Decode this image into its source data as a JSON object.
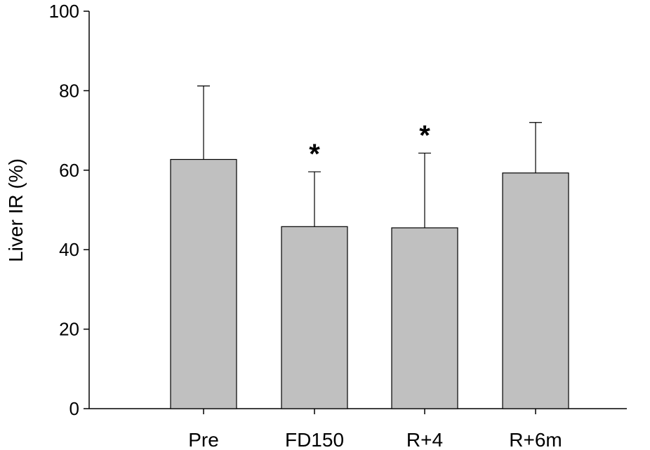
{
  "chart_data": {
    "type": "bar",
    "categories": [
      "Pre",
      "FD150",
      "R+4",
      "R+6m"
    ],
    "values": [
      62.7,
      45.8,
      45.5,
      59.3
    ],
    "error_upper": [
      81.2,
      59.6,
      64.3,
      72.0
    ],
    "annotations": [
      "",
      "*",
      "*",
      ""
    ],
    "title": "",
    "xlabel": "",
    "ylabel": "Liver IR (%)",
    "ylim": [
      0,
      100
    ],
    "yticks": [
      0,
      20,
      40,
      60,
      80,
      100
    ],
    "grid": false,
    "bar_color": "#c0c0c0",
    "bar_edge_color": "#000000"
  }
}
